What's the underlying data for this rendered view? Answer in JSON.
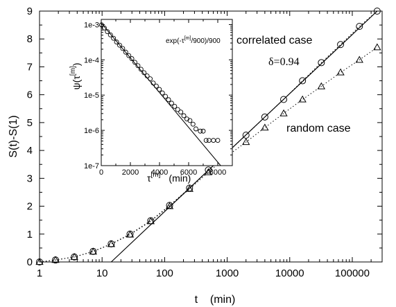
{
  "chart_data": [
    {
      "type": "scatter",
      "xlabel": "t    (min)",
      "ylabel": "S(t)-S(1)",
      "xscale": "log",
      "xlim": [
        1,
        300000
      ],
      "ylim": [
        0,
        9
      ],
      "xticks": [
        1,
        10,
        100,
        1000,
        10000,
        100000
      ],
      "xtick_labels": [
        "1",
        "10",
        "100",
        "1000",
        "10000",
        "100000"
      ],
      "yticks": [
        0,
        1,
        2,
        3,
        4,
        5,
        6,
        7,
        8,
        9
      ],
      "ytick_labels": [
        "0",
        "1",
        "2",
        "3",
        "4",
        "5",
        "6",
        "7",
        "8",
        "9"
      ],
      "annotations": [
        "correlated case",
        "δ=0.94",
        "random case"
      ],
      "series": [
        {
          "marker": "circle",
          "line": "dotted",
          "x": [
            1,
            1.8,
            3.6,
            7.2,
            14,
            28,
            60,
            120,
            250,
            500,
            1000,
            2000,
            4000,
            8000,
            16000,
            32000,
            65000,
            130000,
            250000
          ],
          "y": [
            0.0,
            0.07,
            0.18,
            0.38,
            0.65,
            1.0,
            1.48,
            2.03,
            2.65,
            3.3,
            3.92,
            4.55,
            5.2,
            5.83,
            6.5,
            7.15,
            7.8,
            8.45,
            9.0
          ]
        },
        {
          "marker": "triangle",
          "line": "dotted",
          "x": [
            1,
            1.8,
            3.6,
            7.2,
            14,
            28,
            60,
            120,
            250,
            500,
            1000,
            2000,
            4000,
            8000,
            16000,
            32000,
            65000,
            130000,
            250000
          ],
          "y": [
            0.0,
            0.07,
            0.18,
            0.37,
            0.64,
            0.98,
            1.46,
            2.0,
            2.62,
            3.22,
            3.8,
            4.3,
            4.82,
            5.33,
            5.83,
            6.3,
            6.8,
            7.25,
            7.7
          ]
        },
        {
          "line": "solid",
          "x": [
            14,
            250000
          ],
          "y": [
            0.0,
            9.0
          ]
        }
      ]
    },
    {
      "type": "scatter",
      "xlabel_base": "τ",
      "xlabel_sup": "[m]",
      "xlabel_unit": "(min)",
      "ylabel_base": "ψ(τ",
      "ylabel_sup": "[m]",
      "ylabel_close": ")",
      "annotation": "exp(-τ^[m]/900)/900",
      "annotation_base": "exp(-τ",
      "annotation_sup": "[m]",
      "annotation_tail": "/900)/900",
      "yscale": "log",
      "xlim": [
        0,
        9000
      ],
      "ylim": [
        1e-07,
        0.0014
      ],
      "xticks": [
        0,
        2000,
        4000,
        6000,
        8000
      ],
      "xtick_labels": [
        "0",
        "2000",
        "4000",
        "6000",
        "8000"
      ],
      "yticks": [
        0.001,
        0.0001,
        1e-05,
        1e-06,
        1e-07
      ],
      "ytick_labels": [
        "1e-3",
        "1e-4",
        "1e-5",
        "1e-6",
        "1e-7"
      ],
      "series": [
        {
          "marker": "circle",
          "x": [
            20,
            210,
            420,
            630,
            840,
            1050,
            1260,
            1470,
            1680,
            1890,
            2100,
            2310,
            2520,
            2730,
            2940,
            3150,
            3360,
            3570,
            3780,
            3990,
            4200,
            4410,
            4620,
            4830,
            5040,
            5250,
            5460,
            5670,
            5880,
            6090,
            6300,
            6500,
            6800,
            7000,
            7200,
            7400,
            7700,
            8000
          ],
          "y": [
            0.00098,
            0.0008,
            0.00063,
            0.00051,
            0.00041,
            0.00032,
            0.00026,
            0.00021,
            0.000165,
            0.000132,
            0.000108,
            8.5e-05,
            6.8e-05,
            5.4e-05,
            4.3e-05,
            3.5e-05,
            2.9e-05,
            2.2e-05,
            1.8e-05,
            1.45e-05,
            1.15e-05,
            9.2e-06,
            7.4e-06,
            5.9e-06,
            4.8e-06,
            3.9e-06,
            3.3e-06,
            2.6e-06,
            2.1e-06,
            1.9e-06,
            1.5e-06,
            1.1e-06,
            9.5e-07,
            9.5e-07,
            5.2e-07,
            5.2e-07,
            5.2e-07,
            5.2e-07
          ]
        },
        {
          "line": "solid",
          "x": [
            0,
            8200
          ],
          "y": [
            0.0011,
            1e-07
          ]
        }
      ]
    }
  ]
}
